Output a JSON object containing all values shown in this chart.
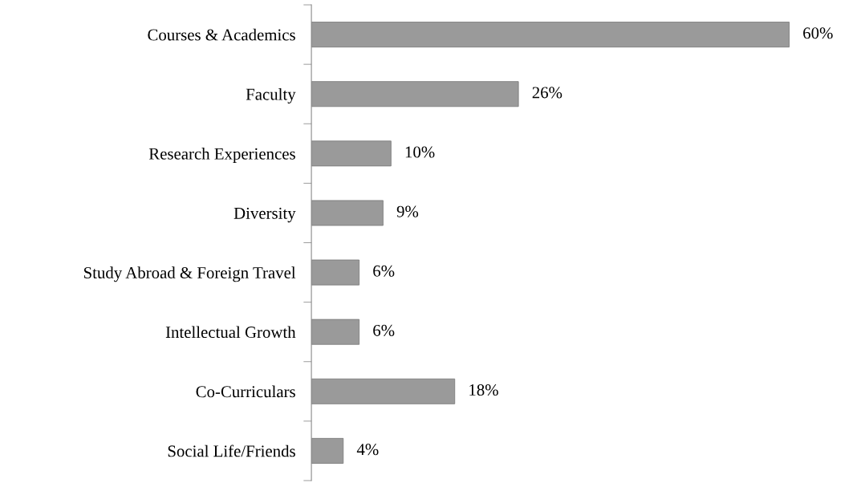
{
  "chart_data": {
    "type": "bar",
    "orientation": "horizontal",
    "categories": [
      "Courses & Academics",
      "Faculty",
      "Research Experiences",
      "Diversity",
      "Study Abroad & Foreign Travel",
      "Intellectual Growth",
      "Co-Curriculars",
      "Social Life/Friends"
    ],
    "values": [
      60,
      26,
      10,
      9,
      6,
      6,
      18,
      4
    ],
    "value_labels": [
      "60%",
      "26%",
      "10%",
      "9%",
      "6%",
      "6%",
      "18%",
      "4%"
    ],
    "color": "#9a9a9a",
    "tick_labels": "y"
  }
}
